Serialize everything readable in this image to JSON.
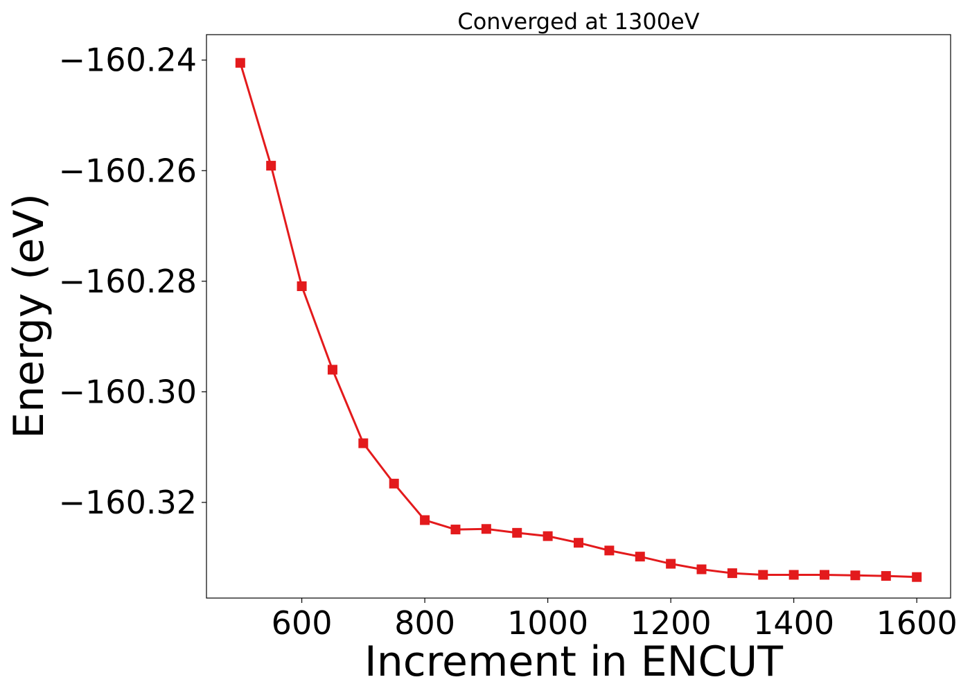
{
  "chart_data": {
    "type": "line",
    "title": "Converged at 1300eV",
    "xlabel": "Increment in ENCUT",
    "ylabel": "Energy (eV)",
    "x_ticks": [
      600,
      800,
      1000,
      1200,
      1400,
      1600
    ],
    "x_tick_labels": [
      "600",
      "800",
      "1000",
      "1200",
      "1400",
      "1600"
    ],
    "y_ticks": [
      -160.24,
      -160.26,
      -160.28,
      -160.3,
      -160.32
    ],
    "y_tick_labels": [
      "−160.24",
      "−160.26",
      "−160.28",
      "−160.30",
      "−160.32"
    ],
    "xlim": [
      445,
      1655
    ],
    "ylim": [
      -160.3373,
      -160.2354
    ],
    "grid": false,
    "marker": "square",
    "color": "#e31a1c",
    "series": [
      {
        "x": [
          500,
          550,
          600,
          650,
          700,
          750,
          800,
          850,
          900,
          950,
          1000,
          1050,
          1100,
          1150,
          1200,
          1250,
          1300,
          1350,
          1400,
          1450,
          1500,
          1550,
          1600
        ],
        "y": [
          -160.2405,
          -160.2591,
          -160.2809,
          -160.296,
          -160.3093,
          -160.3166,
          -160.3232,
          -160.3249,
          -160.3248,
          -160.3255,
          -160.3261,
          -160.3273,
          -160.3287,
          -160.3298,
          -160.3311,
          -160.3321,
          -160.3328,
          -160.3331,
          -160.3331,
          -160.3331,
          -160.3332,
          -160.3333,
          -160.3335
        ]
      }
    ]
  }
}
